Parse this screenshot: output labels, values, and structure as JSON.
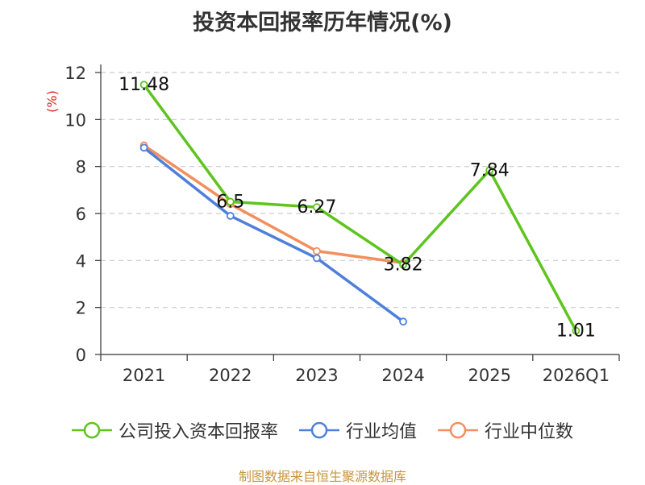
{
  "chart_data": {
    "type": "line",
    "title": "投资本回报率历年情况(%)",
    "ylabel": "(%)",
    "xlabel": "",
    "categories": [
      "2021",
      "2022",
      "2023",
      "2024",
      "2025",
      "2026Q1"
    ],
    "ylim": [
      0,
      12
    ],
    "yticks": [
      0,
      2,
      4,
      6,
      8,
      10,
      12
    ],
    "grid": true,
    "legend_position": "bottom",
    "series": [
      {
        "name": "公司投入资本回报率",
        "color": "#5ec41e",
        "values": [
          11.48,
          6.5,
          6.27,
          3.82,
          7.84,
          1.01
        ],
        "labels": [
          "11.48",
          "6.5",
          "6.27",
          "3.82",
          "7.84",
          "1.01"
        ]
      },
      {
        "name": "行业均值",
        "color": "#4e80db",
        "values": [
          8.8,
          5.9,
          4.1,
          1.4,
          null,
          null
        ]
      },
      {
        "name": "行业中位数",
        "color": "#f28f5c",
        "values": [
          8.9,
          6.4,
          4.4,
          3.9,
          null,
          null
        ]
      }
    ]
  },
  "source": "制图数据来自恒生聚源数据库"
}
